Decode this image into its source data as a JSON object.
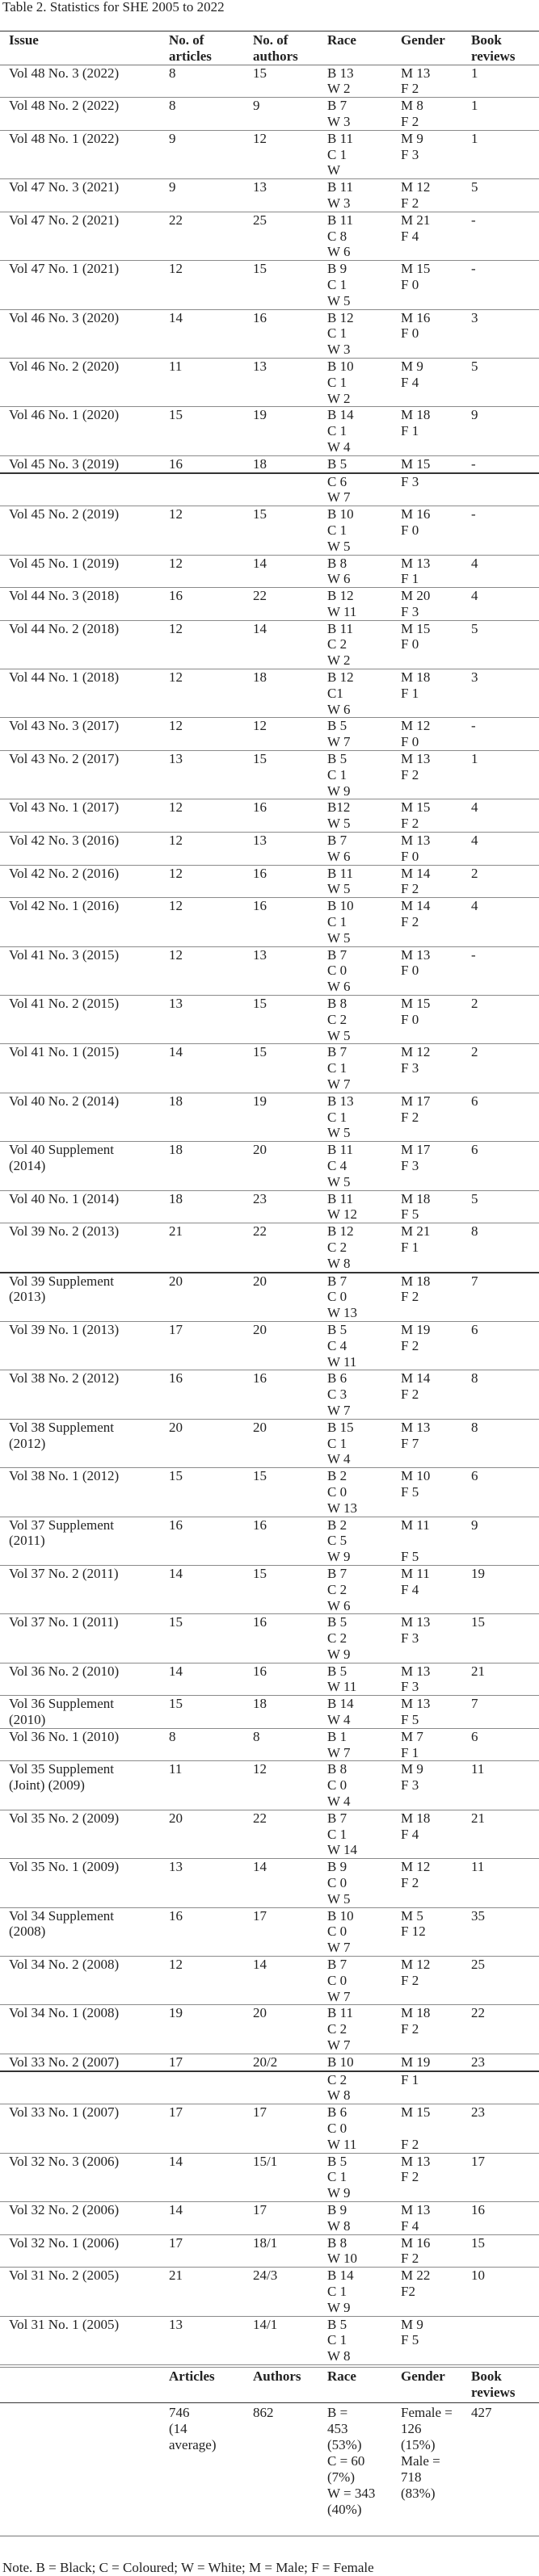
{
  "title": "Table 2. Statistics for SHE 2005 to 2022",
  "headers": {
    "issue": "Issue",
    "articles": "No. of\narticles",
    "authors": "No. of\nauthors",
    "race": "Race",
    "gender": "Gender",
    "reviews": "Book\nreviews"
  },
  "rows": [
    {
      "issue": "Vol 48 No. 3 (2022)",
      "articles": "8",
      "authors": "15",
      "race": [
        "B 13",
        "W 2"
      ],
      "gender": [
        "M 13",
        "F 2"
      ],
      "reviews": "1"
    },
    {
      "issue": "Vol 48 No. 2 (2022)",
      "articles": "8",
      "authors": "9",
      "race": [
        "B 7",
        "W 3"
      ],
      "gender": [
        "M 8",
        "F 2"
      ],
      "reviews": "1"
    },
    {
      "issue": "Vol 48 No. 1 (2022)",
      "articles": "9",
      "authors": "12",
      "race": [
        "B 11",
        "C 1",
        "W"
      ],
      "gender": [
        "M 9",
        "F 3"
      ],
      "reviews": "1"
    },
    {
      "issue": "Vol 47 No. 3 (2021)",
      "articles": "9",
      "authors": "13",
      "race": [
        "B 11",
        "W 3"
      ],
      "gender": [
        "M 12",
        "F 2"
      ],
      "reviews": "5"
    },
    {
      "issue": "Vol 47 No. 2 (2021)",
      "articles": "22",
      "authors": "25",
      "race": [
        "B 11",
        "C 8",
        "W 6"
      ],
      "gender": [
        "M 21",
        "F 4"
      ],
      "reviews": "-"
    },
    {
      "issue": "Vol 47 No. 1 (2021)",
      "articles": "12",
      "authors": "15",
      "race": [
        "B 9",
        "C 1",
        "W 5"
      ],
      "gender": [
        "M 15",
        "F 0"
      ],
      "reviews": "-"
    },
    {
      "issue": "Vol 46 No. 3 (2020)",
      "articles": "14",
      "authors": "16",
      "race": [
        "B 12",
        "C 1",
        "W 3"
      ],
      "gender": [
        "M 16",
        "F 0"
      ],
      "reviews": "3"
    },
    {
      "issue": "Vol 46 No. 2 (2020)",
      "articles": "11",
      "authors": "13",
      "race": [
        "B 10",
        "C 1",
        "W 2"
      ],
      "gender": [
        "M 9",
        "F 4"
      ],
      "reviews": "5"
    },
    {
      "issue": "Vol 46 No. 1 (2020)",
      "articles": "15",
      "authors": "19",
      "race": [
        "B 14",
        "C 1",
        "W 4"
      ],
      "gender": [
        "M 18",
        "F 1"
      ],
      "reviews": "9"
    },
    {
      "issue": "Vol 45 No. 3 (2019)",
      "articles": "16",
      "authors": "18",
      "race": [
        "B 5"
      ],
      "gender": [
        "M 15"
      ],
      "reviews": "-",
      "page_break": true
    },
    {
      "issue": "",
      "articles": "",
      "authors": "",
      "race": [
        "C 6",
        "W 7"
      ],
      "gender": [
        "F 3"
      ],
      "reviews": ""
    },
    {
      "issue": "Vol 45 No. 2 (2019)",
      "articles": "12",
      "authors": "15",
      "race": [
        "B 10",
        "C 1",
        "W 5"
      ],
      "gender": [
        "M 16",
        "F 0"
      ],
      "reviews": "-"
    },
    {
      "issue": "Vol 45 No. 1 (2019)",
      "articles": "12",
      "authors": "14",
      "race": [
        "B 8",
        "W 6"
      ],
      "gender": [
        "M 13",
        "F 1"
      ],
      "reviews": "4"
    },
    {
      "issue": "Vol 44 No. 3 (2018)",
      "articles": "16",
      "authors": "22",
      "race": [
        "B 12",
        "W 11"
      ],
      "gender": [
        "M 20",
        "F 3"
      ],
      "reviews": "4"
    },
    {
      "issue": "Vol 44 No. 2 (2018)",
      "articles": "12",
      "authors": "14",
      "race": [
        "B 11",
        "C 2",
        "W 2"
      ],
      "gender": [
        "M 15",
        "F 0"
      ],
      "reviews": "5"
    },
    {
      "issue": "Vol 44 No. 1 (2018)",
      "articles": "12",
      "authors": "18",
      "race": [
        "B 12",
        "C1",
        "W 6"
      ],
      "gender": [
        "M 18",
        "F 1"
      ],
      "reviews": "3"
    },
    {
      "issue": "Vol 43 No. 3 (2017)",
      "articles": "12",
      "authors": "12",
      "race": [
        "B 5",
        "W 7"
      ],
      "gender": [
        "M 12",
        "F 0"
      ],
      "reviews": "-"
    },
    {
      "issue": "Vol 43 No. 2 (2017)",
      "articles": "13",
      "authors": "15",
      "race": [
        "B 5",
        "C 1",
        "W 9"
      ],
      "gender": [
        "M 13",
        "F 2"
      ],
      "reviews": "1"
    },
    {
      "issue": "Vol 43 No. 1 (2017)",
      "articles": "12",
      "authors": "16",
      "race": [
        "B12",
        "W 5"
      ],
      "gender": [
        "M 15",
        "F 2"
      ],
      "reviews": "4"
    },
    {
      "issue": "Vol 42 No. 3 (2016)",
      "articles": "12",
      "authors": "13",
      "race": [
        "B 7",
        "W 6"
      ],
      "gender": [
        "M 13",
        "F 0"
      ],
      "reviews": "4"
    },
    {
      "issue": "Vol 42 No. 2 (2016)",
      "articles": "12",
      "authors": "16",
      "race": [
        "B 11",
        "W 5"
      ],
      "gender": [
        "M 14",
        "F 2"
      ],
      "reviews": "2"
    },
    {
      "issue": "Vol 42 No. 1 (2016)",
      "articles": "12",
      "authors": "16",
      "race": [
        "B 10",
        "C 1",
        "W 5"
      ],
      "gender": [
        "M 14",
        "F 2"
      ],
      "reviews": "4"
    },
    {
      "issue": "Vol 41 No. 3 (2015)",
      "articles": "12",
      "authors": "13",
      "race": [
        "B 7",
        "C 0",
        "W 6"
      ],
      "gender": [
        "M 13",
        "F 0"
      ],
      "reviews": "-"
    },
    {
      "issue": "Vol 41 No. 2 (2015)",
      "articles": "13",
      "authors": "15",
      "race": [
        "B 8",
        "C 2",
        "W 5"
      ],
      "gender": [
        "M 15",
        "F 0"
      ],
      "reviews": "2"
    },
    {
      "issue": "Vol 41 No. 1 (2015)",
      "articles": "14",
      "authors": "15",
      "race": [
        "B 7",
        "C 1",
        "W 7"
      ],
      "gender": [
        "M 12",
        "F 3"
      ],
      "reviews": "2"
    },
    {
      "issue": "Vol 40 No. 2 (2014)",
      "articles": "18",
      "authors": "19",
      "race": [
        "B 13",
        "C 1",
        "W 5"
      ],
      "gender": [
        "M 17",
        "F 2"
      ],
      "reviews": "6"
    },
    {
      "issue": "Vol 40 Supplement\n(2014)",
      "articles": "18",
      "authors": "20",
      "race": [
        "B 11",
        "C 4",
        "W 5"
      ],
      "gender": [
        "M 17",
        "F 3"
      ],
      "reviews": "6"
    },
    {
      "issue": "Vol 40 No. 1 (2014)",
      "articles": "18",
      "authors": "23",
      "race": [
        "B 11",
        "W 12"
      ],
      "gender": [
        "M 18",
        "F 5"
      ],
      "reviews": "5"
    },
    {
      "issue": "Vol 39 No. 2 (2013)",
      "articles": "21",
      "authors": "22",
      "race": [
        "B 12",
        "C 2",
        "W 8"
      ],
      "gender": [
        "M 21",
        "F 1"
      ],
      "reviews": "8",
      "page_break": true
    },
    {
      "issue": "Vol 39 Supplement\n(2013)",
      "articles": "20",
      "authors": "20",
      "race": [
        "B 7",
        "C 0",
        "W 13"
      ],
      "gender": [
        "M 18",
        "F 2"
      ],
      "reviews": "7"
    },
    {
      "issue": "Vol 39 No. 1 (2013)",
      "articles": "17",
      "authors": "20",
      "race": [
        "B 5",
        "C 4",
        "W 11"
      ],
      "gender": [
        "M 19",
        "F 2"
      ],
      "reviews": "6"
    },
    {
      "issue": "Vol 38 No. 2 (2012)",
      "articles": "16",
      "authors": "16",
      "race": [
        "B 6",
        "C 3",
        "W 7"
      ],
      "gender": [
        "M 14",
        "F 2"
      ],
      "reviews": "8"
    },
    {
      "issue": "Vol 38 Supplement\n(2012)",
      "articles": "20",
      "authors": "20",
      "race": [
        "B 15",
        "C 1",
        "W 4"
      ],
      "gender": [
        "M 13",
        "F 7"
      ],
      "reviews": "8"
    },
    {
      "issue": "Vol 38 No. 1 (2012)",
      "articles": " 15",
      "authors": "15",
      "race": [
        "B 2",
        "C 0",
        "W 13"
      ],
      "gender": [
        "M 10",
        "F 5"
      ],
      "reviews": "6"
    },
    {
      "issue": "Vol 37 Supplement\n(2011)",
      "articles": "16",
      "authors": "16",
      "race": [
        "B 2",
        "C 5",
        "W 9"
      ],
      "gender": [
        "M 11",
        "",
        "F 5"
      ],
      "reviews": "9"
    },
    {
      "issue": "Vol 37 No. 2 (2011)",
      "articles": "14",
      "authors": "15",
      "race": [
        "B 7",
        "C 2",
        "W 6"
      ],
      "gender": [
        "M 11",
        "F 4"
      ],
      "reviews": "19"
    },
    {
      "issue": "Vol 37 No. 1 (2011)",
      "articles": "15",
      "authors": "16",
      "race": [
        "B 5",
        "C 2",
        "W 9"
      ],
      "gender": [
        "M 13",
        "F 3"
      ],
      "reviews": "15"
    },
    {
      "issue": "Vol 36 No. 2 (2010)",
      "articles": "14",
      "authors": "16",
      "race": [
        "B 5",
        "W 11"
      ],
      "gender": [
        "M 13",
        "F 3"
      ],
      "reviews": "21"
    },
    {
      "issue": "Vol 36 Supplement\n(2010)",
      "articles": "15",
      "authors": "18",
      "race": [
        "B 14",
        "W 4"
      ],
      "gender": [
        "M 13",
        "F 5"
      ],
      "reviews": "7"
    },
    {
      "issue": "Vol 36 No. 1 (2010)",
      "articles": "8",
      "authors": "8",
      "race": [
        "B 1",
        "W 7"
      ],
      "gender": [
        "M 7",
        "F 1"
      ],
      "reviews": "6"
    },
    {
      "issue": "Vol 35 Supplement\n(Joint) (2009)",
      "articles": "11",
      "authors": "12",
      "race": [
        "B 8",
        "C 0",
        "W 4"
      ],
      "gender": [
        "M 9",
        "F 3"
      ],
      "reviews": "11"
    },
    {
      "issue": "Vol 35 No. 2 (2009)",
      "articles": "20",
      "authors": "22",
      "race": [
        "B 7",
        "C 1",
        "W 14"
      ],
      "gender": [
        "M 18",
        "F 4"
      ],
      "reviews": "21"
    },
    {
      "issue": "Vol 35 No. 1 (2009)",
      "articles": "13",
      "authors": "14",
      "race": [
        "B 9",
        "C 0",
        "W 5"
      ],
      "gender": [
        "M 12",
        "F 2"
      ],
      "reviews": "11"
    },
    {
      "issue": "Vol 34 Supplement\n(2008)",
      "articles": "16",
      "authors": "17",
      "race": [
        "B 10",
        "C 0",
        "W 7"
      ],
      "gender": [
        "M 5",
        "F 12"
      ],
      "reviews": "35"
    },
    {
      "issue": "Vol 34 No. 2 (2008)",
      "articles": "12",
      "authors": "14",
      "race": [
        "B 7",
        "C 0",
        "W 7"
      ],
      "gender": [
        "M 12",
        "F 2"
      ],
      "reviews": "25"
    },
    {
      "issue": "Vol 34 No. 1 (2008)",
      "articles": "19",
      "authors": "20",
      "race": [
        "B 11",
        "C 2",
        "W 7"
      ],
      "gender": [
        "M 18",
        "F 2"
      ],
      "reviews": "22"
    },
    {
      "issue": "Vol 33 No. 2 (2007)",
      "articles": "17",
      "authors": "20/2",
      "race": [
        "B 10"
      ],
      "gender": [
        "M 19"
      ],
      "reviews": "23",
      "page_break": true
    },
    {
      "issue": "",
      "articles": "",
      "authors": "",
      "race": [
        "C 2",
        "W 8"
      ],
      "gender": [
        "F 1"
      ],
      "reviews": ""
    },
    {
      "issue": "Vol 33 No. 1 (2007)",
      "articles": "17",
      "authors": "17",
      "race": [
        "B 6",
        "C 0",
        "W 11"
      ],
      "gender": [
        "M 15",
        "",
        "F 2"
      ],
      "reviews": "23"
    },
    {
      "issue": "Vol 32 No. 3 (2006)",
      "articles": "14",
      "authors": "15/1",
      "race": [
        "B 5",
        "C 1",
        "W 9"
      ],
      "gender": [
        "M 13",
        "F 2"
      ],
      "reviews": "17"
    },
    {
      "issue": "Vol 32 No. 2 (2006)",
      "articles": "14",
      "authors": "17",
      "race": [
        "B 9",
        "W 8"
      ],
      "gender": [
        "M 13",
        "F 4"
      ],
      "reviews": "16"
    },
    {
      "issue": "Vol 32 No. 1 (2006)",
      "articles": "17",
      "authors": "18/1",
      "race": [
        "B 8",
        "W 10"
      ],
      "gender": [
        "M 16",
        "F 2"
      ],
      "reviews": "15"
    },
    {
      "issue": "Vol 31 No. 2 (2005)",
      "articles": "21",
      "authors": "24/3",
      "race": [
        "B 14",
        "C 1",
        "W 9"
      ],
      "gender": [
        "M 22",
        "F2"
      ],
      "reviews": "10"
    },
    {
      "issue": "Vol 31 No. 1 (2005)",
      "articles": "13",
      "authors": "14/1",
      "race": [
        "B 5",
        "C 1",
        "W 8"
      ],
      "gender": [
        "M 9",
        "F 5"
      ],
      "reviews": ""
    }
  ],
  "summary": {
    "headers": {
      "articles": "Articles",
      "authors": "Authors",
      "race": "Race",
      "gender": "Gender",
      "reviews": "Book\nreviews"
    },
    "articles": "746\n(14\naverage)",
    "authors": "862",
    "race": "B =\n453\n(53%)\nC = 60\n(7%)\nW = 343\n(40%)",
    "gender": "Female =\n126\n(15%)\nMale =\n718\n(83%)",
    "reviews": "427"
  },
  "note": "Note. B = Black; C = Coloured; W = White; M = Male; F = Female"
}
